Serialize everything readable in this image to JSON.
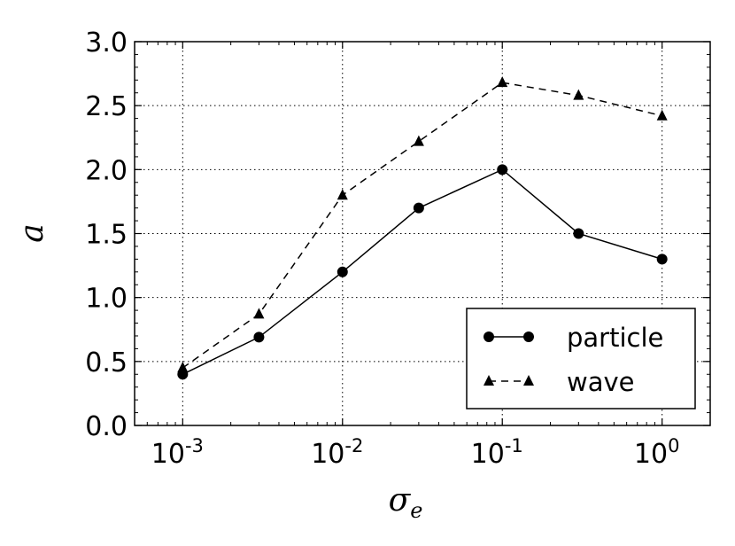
{
  "chart_data": {
    "type": "line",
    "title": "",
    "xlabel": "σ",
    "xlabel_sub": "e",
    "ylabel": "a",
    "xscale": "log",
    "xlim": [
      0.0005,
      2
    ],
    "ylim": [
      0,
      3.0
    ],
    "grid": true,
    "legend_position": "lower-right",
    "x_ticks": [
      0.001,
      0.01,
      0.1,
      1
    ],
    "x_tick_labels": [
      {
        "base": "10",
        "exp": "-3"
      },
      {
        "base": "10",
        "exp": "-2"
      },
      {
        "base": "10",
        "exp": "-1"
      },
      {
        "base": "10",
        "exp": "0"
      }
    ],
    "y_ticks": [
      0,
      0.5,
      1.0,
      1.5,
      2.0,
      2.5,
      3.0
    ],
    "y_tick_labels": [
      "0.0",
      "0.5",
      "1.0",
      "1.5",
      "2.0",
      "2.5",
      "3.0"
    ],
    "x": [
      0.001,
      0.003,
      0.01,
      0.03,
      0.1,
      0.3,
      1
    ],
    "series": [
      {
        "name": "particle",
        "marker": "circle",
        "linestyle": "solid",
        "color": "#000000",
        "values": [
          0.4,
          0.69,
          1.2,
          1.7,
          2.0,
          1.5,
          1.3
        ]
      },
      {
        "name": "wave",
        "marker": "triangle",
        "linestyle": "dashed",
        "color": "#000000",
        "values": [
          0.45,
          0.87,
          1.8,
          2.22,
          2.68,
          2.58,
          2.42
        ]
      }
    ]
  }
}
